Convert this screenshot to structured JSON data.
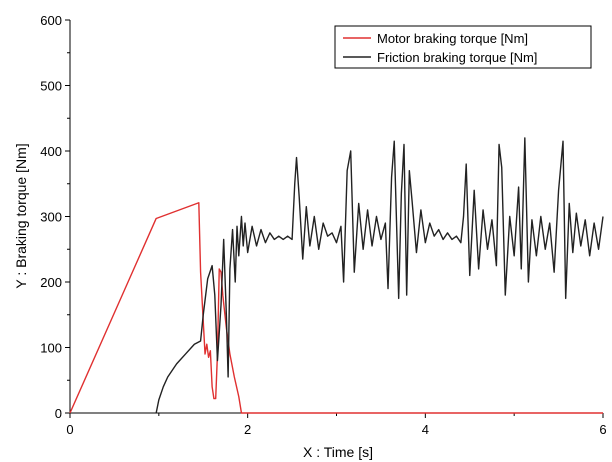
{
  "chart_data": {
    "type": "line",
    "xlabel": "X : Time [s]",
    "ylabel": "Y : Braking torque [Nm]",
    "xlim": [
      0,
      6
    ],
    "ylim": [
      0,
      600
    ],
    "x_ticks": [
      0,
      2,
      4,
      6
    ],
    "y_ticks": [
      0,
      100,
      200,
      300,
      400,
      500,
      600
    ],
    "x_tick_labels": [
      "0",
      "2",
      "4",
      "6"
    ],
    "y_tick_labels": [
      "0",
      "100",
      "200",
      "300",
      "400",
      "500",
      "600"
    ],
    "grid": false,
    "legend_position": "top-right",
    "series": [
      {
        "name": "Motor braking torque [Nm]",
        "color": "#e03030",
        "x": [
          0,
          0.97,
          1.45,
          1.47,
          1.52,
          1.54,
          1.56,
          1.58,
          1.6,
          1.62,
          1.64,
          1.66,
          1.68,
          1.7,
          1.72,
          1.76,
          1.8,
          1.85,
          1.9,
          1.93,
          6.0
        ],
        "y": [
          0,
          297,
          321,
          215,
          90,
          105,
          85,
          95,
          40,
          22,
          22,
          90,
          220,
          215,
          180,
          130,
          90,
          55,
          25,
          0,
          0
        ]
      },
      {
        "name": "Friction braking torque [Nm]",
        "color": "#222222",
        "x": [
          0.97,
          1.0,
          1.05,
          1.1,
          1.2,
          1.3,
          1.4,
          1.47,
          1.5,
          1.55,
          1.6,
          1.63,
          1.66,
          1.7,
          1.73,
          1.76,
          1.78,
          1.8,
          1.83,
          1.86,
          1.88,
          1.9,
          1.93,
          1.95,
          1.97,
          2.0,
          2.05,
          2.1,
          2.15,
          2.2,
          2.25,
          2.3,
          2.35,
          2.4,
          2.45,
          2.5,
          2.53,
          2.55,
          2.58,
          2.62,
          2.66,
          2.7,
          2.75,
          2.8,
          2.85,
          2.9,
          2.95,
          3.0,
          3.05,
          3.08,
          3.12,
          3.16,
          3.2,
          3.25,
          3.3,
          3.35,
          3.4,
          3.45,
          3.5,
          3.55,
          3.58,
          3.62,
          3.65,
          3.7,
          3.73,
          3.76,
          3.79,
          3.82,
          3.85,
          3.9,
          3.95,
          4.0,
          4.05,
          4.1,
          4.15,
          4.2,
          4.25,
          4.3,
          4.35,
          4.4,
          4.43,
          4.46,
          4.5,
          4.55,
          4.6,
          4.65,
          4.7,
          4.75,
          4.8,
          4.83,
          4.86,
          4.9,
          4.95,
          5.0,
          5.05,
          5.08,
          5.12,
          5.16,
          5.2,
          5.25,
          5.3,
          5.35,
          5.4,
          5.45,
          5.5,
          5.55,
          5.58,
          5.62,
          5.66,
          5.7,
          5.75,
          5.8,
          5.85,
          5.9,
          5.95,
          6.0
        ],
        "y": [
          0,
          20,
          40,
          55,
          75,
          90,
          105,
          110,
          150,
          205,
          225,
          180,
          80,
          165,
          265,
          150,
          55,
          220,
          280,
          200,
          285,
          240,
          300,
          255,
          290,
          245,
          285,
          255,
          280,
          260,
          275,
          265,
          270,
          265,
          270,
          265,
          350,
          390,
          330,
          235,
          315,
          255,
          300,
          250,
          290,
          270,
          275,
          260,
          285,
          200,
          370,
          400,
          215,
          320,
          250,
          310,
          255,
          300,
          265,
          290,
          190,
          360,
          415,
          175,
          335,
          410,
          180,
          370,
          325,
          245,
          310,
          260,
          290,
          270,
          280,
          265,
          275,
          265,
          270,
          260,
          300,
          380,
          210,
          340,
          220,
          310,
          250,
          295,
          225,
          410,
          375,
          180,
          300,
          240,
          345,
          220,
          420,
          200,
          295,
          240,
          300,
          250,
          290,
          215,
          340,
          415,
          175,
          320,
          245,
          305,
          255,
          295,
          240,
          290,
          250,
          300
        ]
      }
    ]
  }
}
